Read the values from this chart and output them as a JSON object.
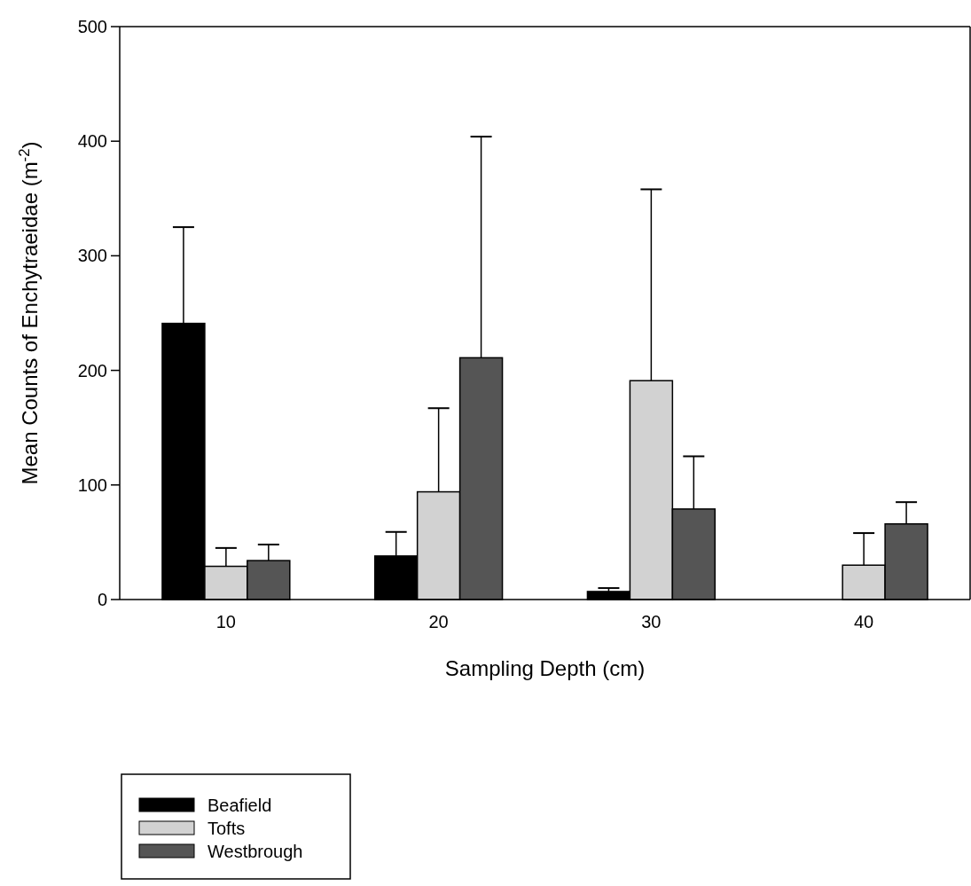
{
  "chart_data": {
    "type": "bar",
    "xlabel": "Sampling Depth (cm)",
    "ylabel": "Mean Counts of Enchytraeidae (m$^{-2}$)",
    "categories": [
      "10",
      "20",
      "30",
      "40"
    ],
    "series": [
      {
        "name": "Beafield",
        "color": "#000000",
        "values": [
          241,
          38,
          7,
          null
        ],
        "errors": [
          84,
          21,
          3,
          null
        ]
      },
      {
        "name": "Tofts",
        "color": "#d2d2d2",
        "values": [
          29,
          94,
          191,
          30
        ],
        "errors": [
          16,
          73,
          167,
          28
        ]
      },
      {
        "name": "Westbrough",
        "color": "#555555",
        "values": [
          34,
          211,
          79,
          66
        ],
        "errors": [
          14,
          193,
          46,
          19
        ]
      }
    ],
    "ylim": [
      0,
      500
    ],
    "yticks": [
      0,
      100,
      200,
      300,
      400,
      500
    ],
    "legend": "bottom left"
  }
}
